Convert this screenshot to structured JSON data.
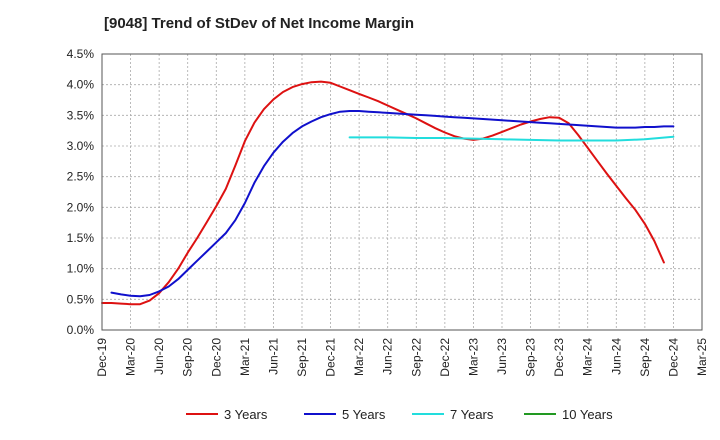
{
  "chart_data": {
    "type": "line",
    "title": "[9048]  Trend of StDev of Net Income Margin",
    "xlabel": "",
    "ylabel": "",
    "x_ticks": [
      "Dec-19",
      "Mar-20",
      "Jun-20",
      "Sep-20",
      "Dec-20",
      "Mar-21",
      "Jun-21",
      "Sep-21",
      "Dec-21",
      "Mar-22",
      "Jun-22",
      "Sep-22",
      "Dec-22",
      "Mar-23",
      "Jun-23",
      "Sep-23",
      "Dec-23",
      "Mar-24",
      "Jun-24",
      "Sep-24",
      "Dec-24",
      "Mar-25"
    ],
    "y_ticks": [
      "0.0%",
      "0.5%",
      "1.0%",
      "1.5%",
      "2.0%",
      "2.5%",
      "3.0%",
      "3.5%",
      "4.0%",
      "4.5%"
    ],
    "ylim": [
      0,
      4.5
    ],
    "grid": true,
    "legend_position": "bottom",
    "series": [
      {
        "name": "3 Years",
        "color": "#dd1111",
        "values": [
          [
            "Dec-19",
            0.44
          ],
          [
            "Jan-20",
            0.44
          ],
          [
            "Feb-20",
            0.43
          ],
          [
            "Mar-20",
            0.42
          ],
          [
            "Apr-20",
            0.42
          ],
          [
            "May-20",
            0.48
          ],
          [
            "Jun-20",
            0.6
          ],
          [
            "Jul-20",
            0.78
          ],
          [
            "Aug-20",
            1.0
          ],
          [
            "Sep-20",
            1.26
          ],
          [
            "Oct-20",
            1.5
          ],
          [
            "Nov-20",
            1.76
          ],
          [
            "Dec-20",
            2.02
          ],
          [
            "Jan-21",
            2.3
          ],
          [
            "Feb-21",
            2.68
          ],
          [
            "Mar-21",
            3.08
          ],
          [
            "Apr-21",
            3.38
          ],
          [
            "May-21",
            3.6
          ],
          [
            "Jun-21",
            3.76
          ],
          [
            "Jul-21",
            3.88
          ],
          [
            "Aug-21",
            3.96
          ],
          [
            "Sep-21",
            4.01
          ],
          [
            "Oct-21",
            4.04
          ],
          [
            "Nov-21",
            4.05
          ],
          [
            "Dec-21",
            4.03
          ],
          [
            "Jan-22",
            3.97
          ],
          [
            "Feb-22",
            3.91
          ],
          [
            "Mar-22",
            3.85
          ],
          [
            "Apr-22",
            3.79
          ],
          [
            "May-22",
            3.73
          ],
          [
            "Jun-22",
            3.66
          ],
          [
            "Jul-22",
            3.59
          ],
          [
            "Aug-22",
            3.52
          ],
          [
            "Sep-22",
            3.45
          ],
          [
            "Oct-22",
            3.37
          ],
          [
            "Nov-22",
            3.29
          ],
          [
            "Dec-22",
            3.22
          ],
          [
            "Jan-23",
            3.16
          ],
          [
            "Feb-23",
            3.12
          ],
          [
            "Mar-23",
            3.1
          ],
          [
            "Apr-23",
            3.12
          ],
          [
            "May-23",
            3.17
          ],
          [
            "Jun-23",
            3.23
          ],
          [
            "Jul-23",
            3.29
          ],
          [
            "Aug-23",
            3.35
          ],
          [
            "Sep-23",
            3.4
          ],
          [
            "Oct-23",
            3.44
          ],
          [
            "Nov-23",
            3.47
          ],
          [
            "Dec-23",
            3.46
          ],
          [
            "Jan-24",
            3.37
          ],
          [
            "Feb-24",
            3.18
          ],
          [
            "Mar-24",
            2.97
          ],
          [
            "Apr-24",
            2.76
          ],
          [
            "May-24",
            2.55
          ],
          [
            "Jun-24",
            2.35
          ],
          [
            "Jul-24",
            2.15
          ],
          [
            "Aug-24",
            1.96
          ],
          [
            "Sep-24",
            1.73
          ],
          [
            "Oct-24",
            1.45
          ],
          [
            "Nov-24",
            1.1
          ]
        ]
      },
      {
        "name": "5 Years",
        "color": "#1010cc",
        "values": [
          [
            "Jan-20",
            0.61
          ],
          [
            "Feb-20",
            0.58
          ],
          [
            "Mar-20",
            0.56
          ],
          [
            "Apr-20",
            0.55
          ],
          [
            "May-20",
            0.57
          ],
          [
            "Jun-20",
            0.63
          ],
          [
            "Jul-20",
            0.71
          ],
          [
            "Aug-20",
            0.83
          ],
          [
            "Sep-20",
            0.98
          ],
          [
            "Oct-20",
            1.13
          ],
          [
            "Nov-20",
            1.28
          ],
          [
            "Dec-20",
            1.43
          ],
          [
            "Jan-21",
            1.58
          ],
          [
            "Feb-21",
            1.79
          ],
          [
            "Mar-21",
            2.07
          ],
          [
            "Apr-21",
            2.4
          ],
          [
            "May-21",
            2.67
          ],
          [
            "Jun-21",
            2.89
          ],
          [
            "Jul-21",
            3.07
          ],
          [
            "Aug-21",
            3.21
          ],
          [
            "Sep-21",
            3.32
          ],
          [
            "Oct-21",
            3.4
          ],
          [
            "Nov-21",
            3.47
          ],
          [
            "Dec-21",
            3.52
          ],
          [
            "Jan-22",
            3.56
          ],
          [
            "Feb-22",
            3.57
          ],
          [
            "Mar-22",
            3.57
          ],
          [
            "Apr-22",
            3.56
          ],
          [
            "May-22",
            3.55
          ],
          [
            "Jun-22",
            3.54
          ],
          [
            "Jul-22",
            3.53
          ],
          [
            "Aug-22",
            3.52
          ],
          [
            "Sep-22",
            3.51
          ],
          [
            "Oct-22",
            3.5
          ],
          [
            "Nov-22",
            3.49
          ],
          [
            "Dec-22",
            3.48
          ],
          [
            "Jan-23",
            3.47
          ],
          [
            "Feb-23",
            3.46
          ],
          [
            "Mar-23",
            3.45
          ],
          [
            "Apr-23",
            3.44
          ],
          [
            "May-23",
            3.43
          ],
          [
            "Jun-23",
            3.42
          ],
          [
            "Jul-23",
            3.41
          ],
          [
            "Aug-23",
            3.4
          ],
          [
            "Sep-23",
            3.39
          ],
          [
            "Oct-23",
            3.38
          ],
          [
            "Nov-23",
            3.37
          ],
          [
            "Dec-23",
            3.36
          ],
          [
            "Jan-24",
            3.35
          ],
          [
            "Feb-24",
            3.34
          ],
          [
            "Mar-24",
            3.33
          ],
          [
            "Apr-24",
            3.32
          ],
          [
            "May-24",
            3.31
          ],
          [
            "Jun-24",
            3.3
          ],
          [
            "Jul-24",
            3.3
          ],
          [
            "Aug-24",
            3.3
          ],
          [
            "Sep-24",
            3.31
          ],
          [
            "Oct-24",
            3.31
          ],
          [
            "Nov-24",
            3.32
          ],
          [
            "Dec-24",
            3.32
          ]
        ]
      },
      {
        "name": "7 Years",
        "color": "#22dddd",
        "values": [
          [
            "Feb-22",
            3.14
          ],
          [
            "Jun-22",
            3.14
          ],
          [
            "Sep-22",
            3.13
          ],
          [
            "Dec-22",
            3.13
          ],
          [
            "Mar-23",
            3.12
          ],
          [
            "Jun-23",
            3.11
          ],
          [
            "Sep-23",
            3.1
          ],
          [
            "Dec-23",
            3.09
          ],
          [
            "Mar-24",
            3.09
          ],
          [
            "Jun-24",
            3.09
          ],
          [
            "Sep-24",
            3.11
          ],
          [
            "Dec-24",
            3.15
          ]
        ]
      },
      {
        "name": "10 Years",
        "color": "#229922",
        "values": []
      }
    ]
  }
}
